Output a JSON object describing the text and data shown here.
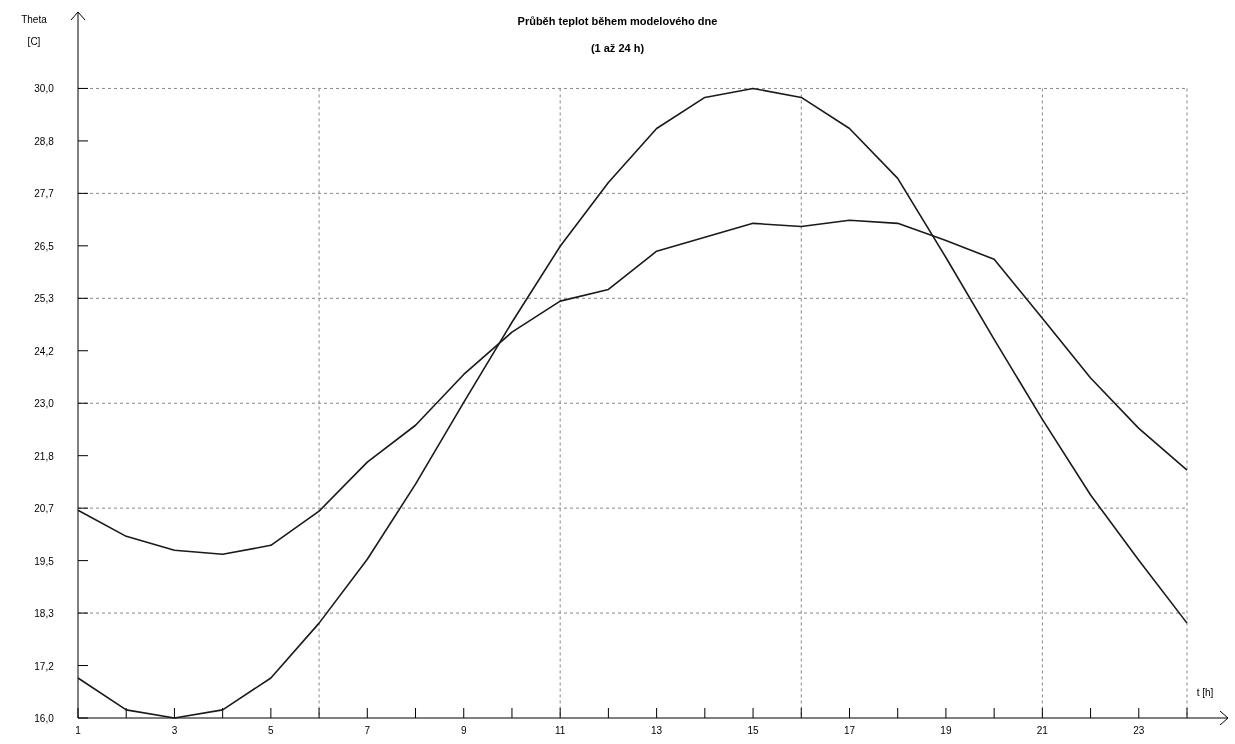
{
  "chart_data": {
    "type": "line",
    "title": "Průběh teplot během modelového dne",
    "subtitle": "(1 až 24 h)",
    "ylabel": "Theta [C]",
    "xlabel": "t [h]",
    "x": [
      1,
      2,
      3,
      4,
      5,
      6,
      7,
      8,
      9,
      10,
      11,
      12,
      13,
      14,
      15,
      16,
      17,
      18,
      19,
      20,
      21,
      22,
      23,
      24
    ],
    "series": [
      {
        "color": "#1a1a1a",
        "values": [
          16.89,
          16.18,
          16.0,
          16.18,
          16.89,
          18.11,
          19.53,
          21.2,
          23.02,
          24.8,
          26.49,
          27.91,
          29.11,
          29.8,
          30.0,
          29.8,
          29.11,
          28.0,
          26.24,
          24.42,
          22.64,
          20.96,
          19.51,
          18.11
        ]
      },
      {
        "color": "#1a1a1a",
        "values": [
          20.62,
          20.04,
          19.73,
          19.64,
          19.84,
          20.6,
          21.69,
          22.51,
          23.64,
          24.58,
          25.27,
          25.53,
          26.38,
          26.69,
          27.0,
          26.93,
          27.07,
          27.0,
          26.62,
          26.2,
          24.89,
          23.56,
          22.44,
          21.51
        ]
      }
    ],
    "xlim": [
      1,
      24.85
    ],
    "ylim": [
      16,
      31.7
    ],
    "xticks": [
      1,
      {
        "value": 2,
        "label": null
      },
      3,
      {
        "value": 4,
        "label": null
      },
      5,
      {
        "value": 6,
        "label": null
      },
      7,
      {
        "value": 8,
        "label": null
      },
      9,
      {
        "value": 10,
        "label": null
      },
      11,
      {
        "value": 12,
        "label": null
      },
      13,
      {
        "value": 14,
        "label": null
      },
      15,
      {
        "value": 16,
        "label": null
      },
      17,
      {
        "value": 18,
        "label": null
      },
      19,
      {
        "value": 20,
        "label": null
      },
      21,
      {
        "value": 22,
        "label": null
      },
      23,
      {
        "value": 24,
        "label": null
      }
    ],
    "yticks": [
      {
        "value": 16,
        "label": "16,0"
      },
      {
        "value": 17.1667,
        "label": "17,2"
      },
      {
        "value": 18.3333,
        "label": "18,3"
      },
      {
        "value": 19.5,
        "label": "19,5"
      },
      {
        "value": 20.6667,
        "label": "20,7"
      },
      {
        "value": 21.8333,
        "label": "21,8"
      },
      {
        "value": 23,
        "label": "23,0"
      },
      {
        "value": 24.1667,
        "label": "24,2"
      },
      {
        "value": 25.3333,
        "label": "25,3"
      },
      {
        "value": 26.5,
        "label": "26,5"
      },
      {
        "value": 27.6667,
        "label": "27,7"
      },
      {
        "value": 28.8333,
        "label": "28,8"
      },
      {
        "value": 30,
        "label": "30,0"
      }
    ],
    "grid": true,
    "marker": "none",
    "line_style": "solid"
  }
}
